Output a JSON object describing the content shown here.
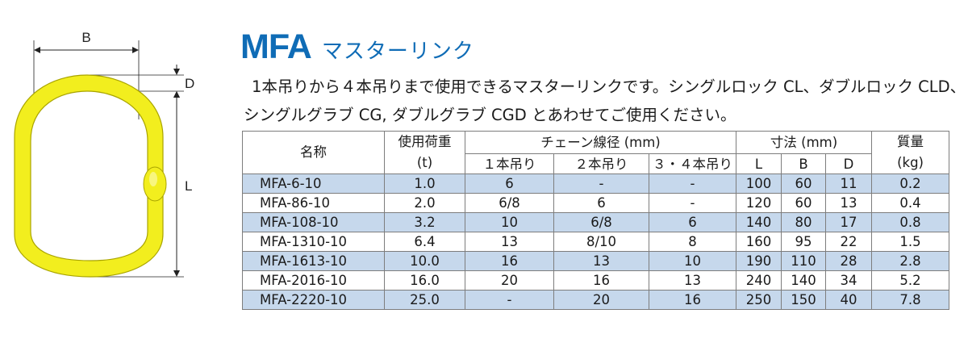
{
  "figure": {
    "dim_b": "B",
    "dim_d": "D",
    "dim_l": "L",
    "link_color": "#f2ee1e",
    "link_stroke": "#a9a400"
  },
  "title": {
    "code": "MFA",
    "name": "マスターリンク",
    "color": "#0f6cb6"
  },
  "description": {
    "line1": "1本吊りから４本吊りまで使用できるマスターリンクです。シングルロック CL、ダブルロック CLD、",
    "line2": "シングルグラブ CG, ダブルグラブ CGD とあわせてご使用ください。"
  },
  "table": {
    "headers": {
      "name": "名称",
      "load_top": "使用荷重",
      "load_unit": "(t)",
      "chain_group": "チェーン線径 (mm)",
      "chain_1": "１本吊り",
      "chain_2": "２本吊り",
      "chain_34": "３・４本吊り",
      "dims_group": "寸法 (mm)",
      "dim_l": "L",
      "dim_b": "B",
      "dim_d": "D",
      "mass_top": "質量",
      "mass_unit": "(kg)"
    },
    "band_color": "#c6d8ec",
    "rows": [
      {
        "name": "MFA-6-10",
        "load": "1.0",
        "c1": "6",
        "c2": "-",
        "c34": "-",
        "l": "100",
        "b": "60",
        "d": "11",
        "mass": "0.2"
      },
      {
        "name": "MFA-86-10",
        "load": "2.0",
        "c1": "6/8",
        "c2": "6",
        "c34": "-",
        "l": "120",
        "b": "60",
        "d": "13",
        "mass": "0.4"
      },
      {
        "name": "MFA-108-10",
        "load": "3.2",
        "c1": "10",
        "c2": "6/8",
        "c34": "6",
        "l": "140",
        "b": "80",
        "d": "17",
        "mass": "0.8"
      },
      {
        "name": "MFA-1310-10",
        "load": "6.4",
        "c1": "13",
        "c2": "8/10",
        "c34": "8",
        "l": "160",
        "b": "95",
        "d": "22",
        "mass": "1.5"
      },
      {
        "name": "MFA-1613-10",
        "load": "10.0",
        "c1": "16",
        "c2": "13",
        "c34": "10",
        "l": "190",
        "b": "110",
        "d": "28",
        "mass": "2.8"
      },
      {
        "name": "MFA-2016-10",
        "load": "16.0",
        "c1": "20",
        "c2": "16",
        "c34": "13",
        "l": "240",
        "b": "140",
        "d": "34",
        "mass": "5.2"
      },
      {
        "name": "MFA-2220-10",
        "load": "25.0",
        "c1": "-",
        "c2": "20",
        "c34": "16",
        "l": "250",
        "b": "150",
        "d": "40",
        "mass": "7.8"
      }
    ]
  }
}
